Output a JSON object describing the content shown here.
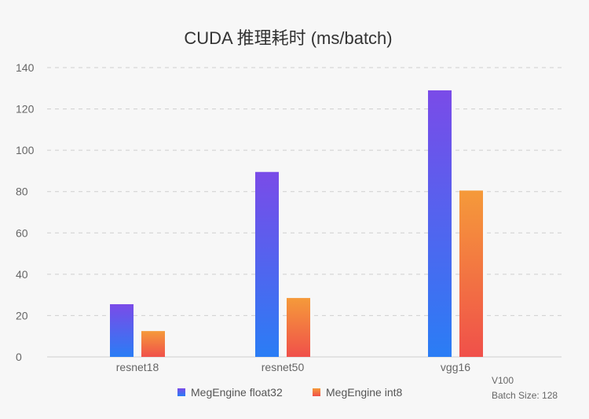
{
  "chart_data": {
    "type": "bar",
    "title": "CUDA 推理耗时 (ms/batch)",
    "categories": [
      "resnet18",
      "resnet50",
      "vgg16"
    ],
    "series": [
      {
        "name": "MegEngine float32",
        "values": [
          25.5,
          89.5,
          129
        ],
        "color_top": "#7a4be8",
        "color_bottom": "#2a7df5"
      },
      {
        "name": "MegEngine int8",
        "values": [
          12.5,
          28.5,
          80.5
        ],
        "color_top": "#f59a3a",
        "color_bottom": "#f0504a"
      }
    ],
    "ylim": [
      0,
      140
    ],
    "yticks": [
      0,
      20,
      40,
      60,
      80,
      100,
      120,
      140
    ],
    "grid": true,
    "legend_position": "bottom",
    "annotation": [
      "V100",
      "Batch Size: 128"
    ]
  }
}
